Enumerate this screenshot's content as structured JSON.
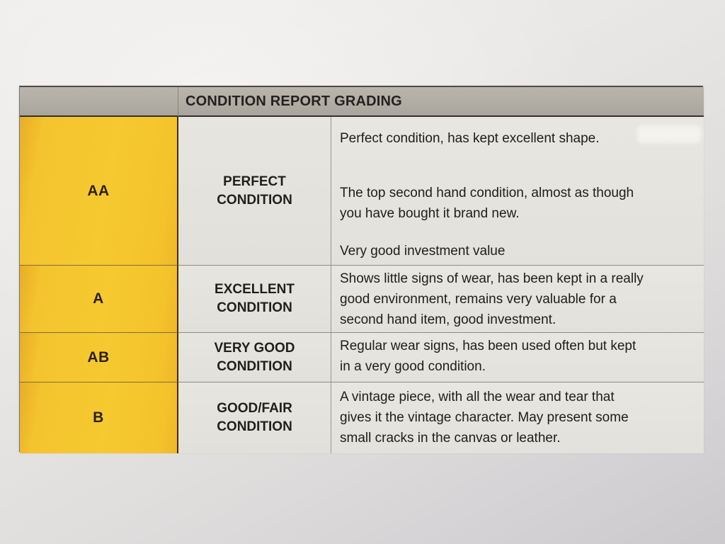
{
  "document": {
    "title": "CONDITION REPORT GRADING",
    "rows": [
      {
        "grade": "AA",
        "label": "PERFECT\nCONDITION",
        "paragraphs": [
          "Perfect condition, has kept excellent shape.",
          "The top second hand condition, almost as though\nyou have bought it brand new.",
          "Very good investment value"
        ]
      },
      {
        "grade": "A",
        "label": "EXCELLENT\nCONDITION",
        "paragraphs": [
          "Shows little signs of wear, has been kept in a really\ngood environment, remains very valuable for a\nsecond hand item, good investment."
        ]
      },
      {
        "grade": "AB",
        "label": "VERY GOOD\nCONDITION",
        "paragraphs": [
          "Regular wear signs, has been used often but kept\nin a very good condition."
        ]
      },
      {
        "grade": "B",
        "label": "GOOD/FAIR\nCONDITION",
        "paragraphs": [
          "A vintage piece, with all the wear and tear that\ngives it the vintage character. May present some\nsmall cracks in the canvas or leather."
        ]
      }
    ],
    "colors": {
      "grade_column": "#f3c32e",
      "header_bg": "#b2aea5",
      "cell_bg": "#e6e4df",
      "border_dark": "#2b2820",
      "text": "#1e1d1a"
    }
  }
}
